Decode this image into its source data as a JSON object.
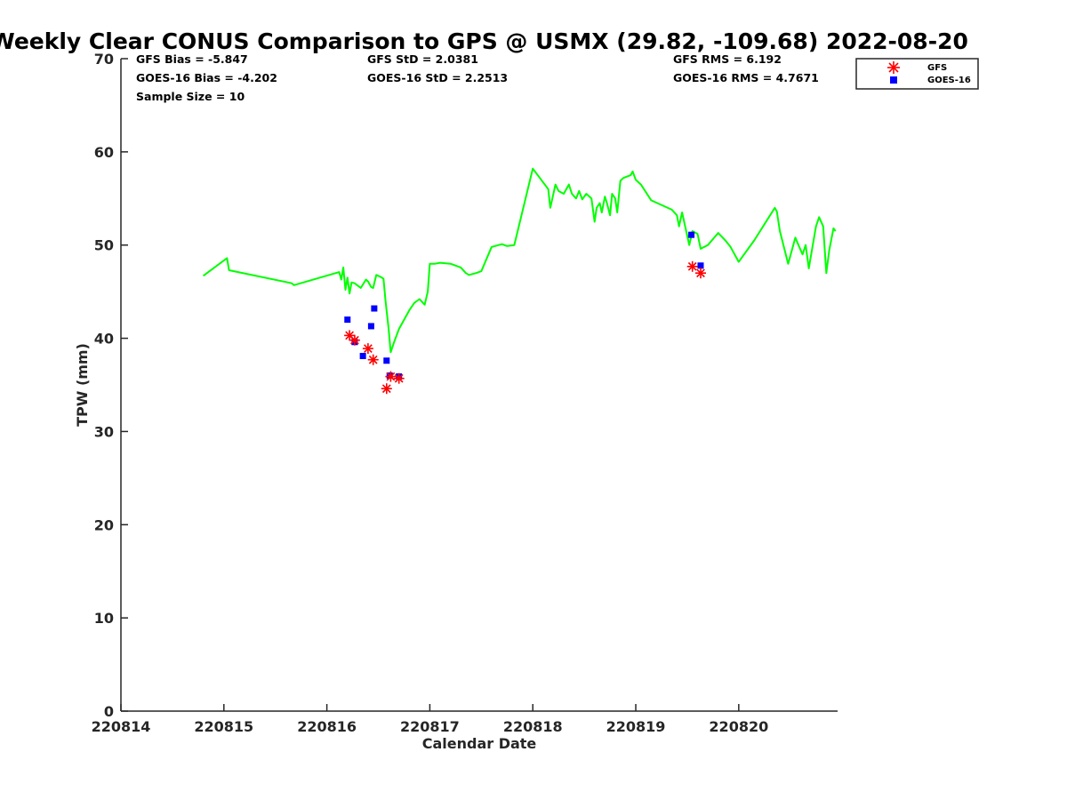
{
  "chart_data": {
    "type": "line",
    "title": "Weekly Clear CONUS Comparison to GPS @ USMX (29.82, -109.68) 2022-08-20",
    "xlabel": "Calendar Date",
    "ylabel": "TPW (mm)",
    "x_tick_labels": [
      "220814",
      "220815",
      "220816",
      "220817",
      "220818",
      "220819",
      "220820"
    ],
    "x_ticks": [
      220814,
      220815,
      220816,
      220817,
      220818,
      220819,
      220820
    ],
    "xlim": [
      220814,
      220820.96
    ],
    "y_ticks": [
      0,
      10,
      20,
      30,
      40,
      50,
      60,
      70
    ],
    "ylim": [
      0,
      70
    ],
    "grid": false,
    "legend_position": "top-right",
    "stats": {
      "gfs_bias": "GFS Bias = -5.847",
      "goes_bias": "GOES-16 Bias = -4.202",
      "sample_size": "Sample Size = 10",
      "gfs_std": "GFS StD = 2.0381",
      "goes_std": "GOES-16 StD = 2.2513",
      "gfs_rms": "GFS RMS = 6.192",
      "goes_rms": "GOES-16 RMS = 4.7671"
    },
    "series": [
      {
        "name": "GPS",
        "kind": "line",
        "color": "#00ff00",
        "x": [
          220814.8,
          220815.03,
          220815.05,
          220815.62,
          220815.66,
          220815.68,
          220816.12,
          220816.14,
          220816.16,
          220816.18,
          220816.2,
          220816.22,
          220816.24,
          220816.27,
          220816.33,
          220816.38,
          220816.4,
          220816.43,
          220816.45,
          220816.48,
          220816.52,
          220816.55,
          220816.57,
          220816.6,
          220816.62,
          220816.65,
          220816.7,
          220816.75,
          220816.8,
          220816.85,
          220816.9,
          220816.95,
          220816.98,
          220817.0,
          220817.05,
          220817.1,
          220817.2,
          220817.3,
          220817.35,
          220817.38,
          220817.45,
          220817.5,
          220817.6,
          220817.7,
          220817.75,
          220817.82,
          220818.0,
          220818.15,
          220818.17,
          220818.22,
          220818.25,
          220818.3,
          220818.35,
          220818.38,
          220818.42,
          220818.45,
          220818.48,
          220818.52,
          220818.57,
          220818.6,
          220818.62,
          220818.65,
          220818.67,
          220818.7,
          220818.72,
          220818.75,
          220818.77,
          220818.8,
          220818.82,
          220818.85,
          220818.88,
          220818.95,
          220818.97,
          220819.0,
          220819.05,
          220819.15,
          220819.35,
          220819.4,
          220819.42,
          220819.45,
          220819.5,
          220819.52,
          220819.55,
          220819.6,
          220819.63,
          220819.7,
          220819.8,
          220819.87,
          220819.92,
          220820.0,
          220820.15,
          220820.35,
          220820.37,
          220820.4,
          220820.48,
          220820.55,
          220820.58,
          220820.62,
          220820.65,
          220820.68,
          220820.75,
          220820.78,
          220820.82,
          220820.85,
          220820.88,
          220820.92,
          220820.94
        ],
        "y": [
          46.7,
          48.6,
          47.3,
          46.0,
          45.9,
          45.7,
          47.1,
          46.3,
          47.6,
          45.2,
          46.5,
          44.8,
          46.0,
          45.9,
          45.4,
          46.3,
          46.1,
          45.5,
          45.4,
          46.8,
          46.6,
          46.4,
          44.0,
          41.0,
          38.5,
          39.5,
          41.0,
          42.0,
          43.0,
          43.8,
          44.2,
          43.6,
          45.0,
          48.0,
          48.0,
          48.1,
          48.0,
          47.6,
          47.0,
          46.8,
          47.0,
          47.2,
          49.8,
          50.1,
          49.9,
          50.0,
          58.2,
          56.0,
          54.0,
          56.5,
          55.8,
          55.5,
          56.5,
          55.5,
          55.0,
          55.8,
          54.9,
          55.5,
          55.0,
          52.5,
          54.0,
          54.5,
          53.5,
          55.2,
          54.5,
          53.2,
          55.5,
          55.0,
          53.5,
          56.9,
          57.2,
          57.5,
          57.9,
          57.0,
          56.5,
          54.8,
          53.8,
          53.2,
          52.0,
          53.5,
          51.0,
          50.0,
          51.5,
          51.2,
          49.6,
          50.0,
          51.3,
          50.5,
          49.8,
          48.2,
          50.5,
          54.0,
          53.6,
          51.5,
          48.0,
          50.8,
          50.0,
          49.0,
          50.0,
          47.5,
          52.0,
          53.0,
          52.0,
          47.0,
          49.5,
          51.8,
          51.5
        ]
      },
      {
        "name": "GFS",
        "kind": "marker",
        "marker": "asterisk",
        "color": "#ff0000",
        "x": [
          220816.22,
          220816.27,
          220816.4,
          220816.45,
          220816.58,
          220816.62,
          220816.7,
          220819.55,
          220819.63
        ],
        "y": [
          40.3,
          39.8,
          38.9,
          37.7,
          34.6,
          35.9,
          35.7,
          47.7,
          47.0
        ]
      },
      {
        "name": "GOES-16",
        "kind": "marker",
        "marker": "square",
        "color": "#0000ff",
        "x": [
          220816.2,
          220816.27,
          220816.35,
          220816.43,
          220816.46,
          220816.58,
          220816.61,
          220816.7,
          220819.54,
          220819.63
        ],
        "y": [
          42.0,
          39.6,
          38.1,
          41.3,
          43.2,
          37.6,
          36.0,
          35.9,
          51.1,
          47.8
        ]
      }
    ]
  }
}
